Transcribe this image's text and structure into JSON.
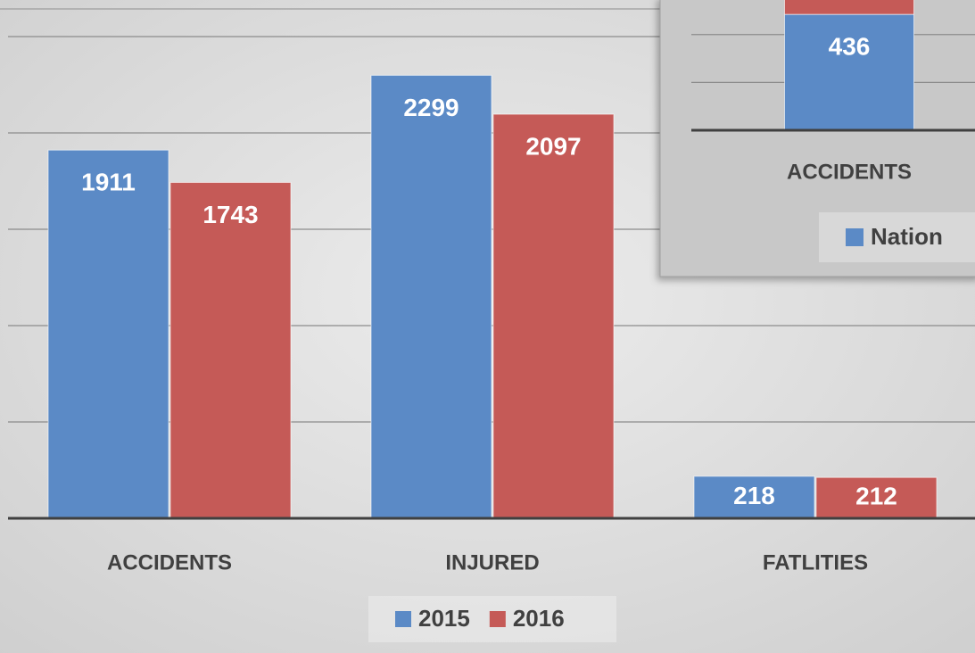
{
  "chart_data": [
    {
      "type": "bar",
      "categories": [
        "ACCIDENTS",
        "INJURED",
        "FATLITIES"
      ],
      "series": [
        {
          "name": "2015",
          "color": "#5b8ac6",
          "values": [
            1911,
            2299,
            218
          ]
        },
        {
          "name": "2016",
          "color": "#c55a57",
          "values": [
            1743,
            2097,
            212
          ]
        }
      ],
      "ylim": [
        0,
        2500
      ],
      "yticks": [
        0,
        500,
        1000,
        1500,
        2000,
        2500
      ],
      "grid": true,
      "legend": "bottom"
    },
    {
      "type": "stacked_bar",
      "categories": [
        "ACCIDENTS"
      ],
      "series": [
        {
          "name": "Nation",
          "color": "#5b8ac6",
          "values": [
            436
          ]
        },
        {
          "color": "#c55a57",
          "values": [
            60
          ]
        }
      ],
      "ylim": [
        0,
        490
      ],
      "yticks": [
        0,
        180,
        360
      ],
      "grid": true,
      "legend": "bottom"
    }
  ]
}
